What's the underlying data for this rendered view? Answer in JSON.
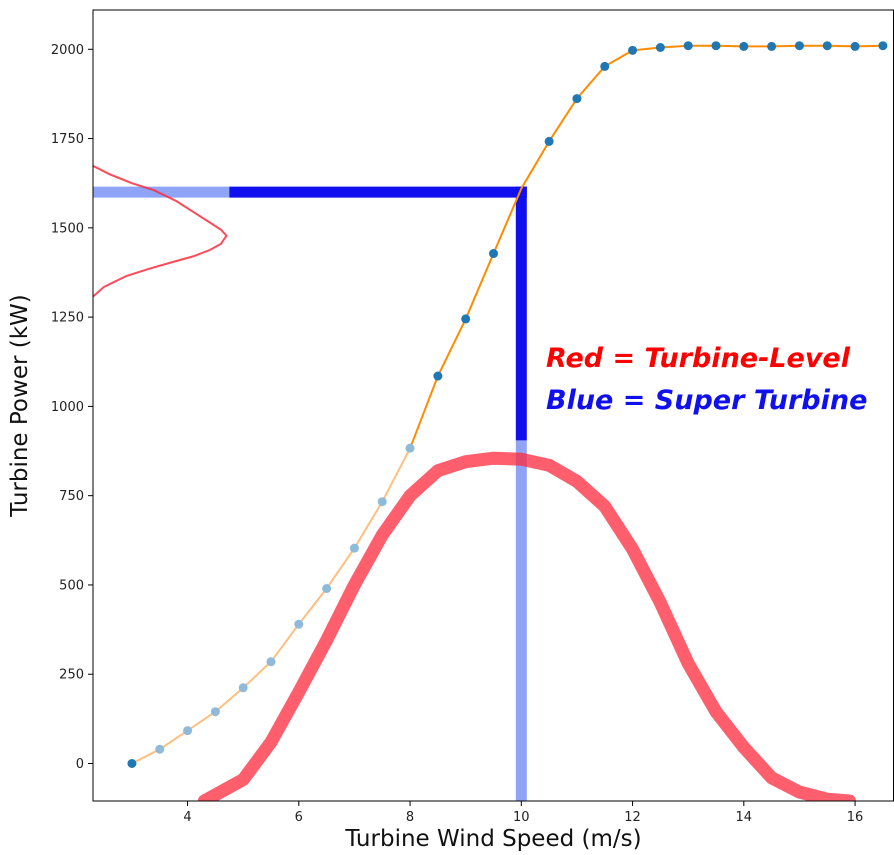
{
  "chart_data": {
    "type": "line",
    "xlabel": "Turbine Wind Speed (m/s)",
    "ylabel": "Turbine Power (kW)",
    "xlim": [
      2.3,
      16.7
    ],
    "ylim": [
      -105,
      2110
    ],
    "xticks": [
      4,
      6,
      8,
      10,
      12,
      14,
      16
    ],
    "yticks": [
      0,
      250,
      500,
      750,
      1000,
      1250,
      1500,
      1750,
      2000
    ],
    "grid": false,
    "power_curve": {
      "x": [
        3.0,
        3.5,
        4.0,
        4.5,
        5.0,
        5.5,
        6.0,
        6.5,
        7.0,
        7.5,
        8.0,
        8.5,
        9.0,
        9.5,
        10.0,
        10.5,
        11.0,
        11.5,
        12.0,
        12.5,
        13.0,
        13.5,
        14.0,
        14.5,
        15.0,
        15.5,
        16.0,
        16.5
      ],
      "y": [
        0,
        40,
        92,
        145,
        212,
        285,
        390,
        490,
        603,
        733,
        883,
        1085,
        1245,
        1428,
        1610,
        1742,
        1862,
        1952,
        1997,
        2005,
        2010,
        2010,
        2008,
        2008,
        2010,
        2010,
        2008,
        2010
      ]
    },
    "power_points_light": {
      "x": [
        3.5,
        4.0,
        4.5,
        5.0,
        5.5,
        6.0,
        6.5,
        7.0,
        7.5,
        8.0
      ],
      "y": [
        40,
        92,
        145,
        212,
        285,
        390,
        490,
        603,
        733,
        883
      ]
    },
    "power_points_dark": {
      "x": [
        3.0,
        8.5,
        9.0,
        9.5,
        10.5,
        11.0,
        11.5,
        12.0,
        12.5,
        13.0,
        13.5,
        14.0,
        14.5,
        15.0,
        15.5,
        16.0,
        16.5
      ],
      "y": [
        0,
        1085,
        1245,
        1428,
        1742,
        1862,
        1952,
        1997,
        2005,
        2010,
        2010,
        2008,
        2008,
        2010,
        2010,
        2008,
        2010
      ]
    },
    "wind_speed_distribution": {
      "x": [
        4.3,
        5.0,
        5.5,
        6.0,
        6.5,
        7.0,
        7.5,
        8.0,
        8.5,
        9.0,
        9.5,
        10.0,
        10.5,
        11.0,
        11.5,
        12.0,
        12.5,
        13.0,
        13.5,
        14.0,
        14.5,
        15.0,
        15.5,
        15.9
      ],
      "y": [
        -105,
        -45,
        60,
        200,
        345,
        500,
        640,
        750,
        820,
        845,
        855,
        852,
        835,
        790,
        720,
        600,
        450,
        280,
        145,
        45,
        -40,
        -80,
        -100,
        -105
      ]
    },
    "power_distribution": {
      "x": [
        2.28,
        2.6,
        3.0,
        3.4,
        3.8,
        4.1,
        4.4,
        4.6,
        4.7,
        4.6,
        4.4,
        4.1,
        3.7,
        3.3,
        2.9,
        2.5,
        2.28
      ],
      "y": [
        1675,
        1650,
        1625,
        1605,
        1575,
        1545,
        1515,
        1495,
        1478,
        1455,
        1438,
        1420,
        1403,
        1385,
        1365,
        1335,
        1305
      ]
    },
    "blue_markers": {
      "horizontal_y": 1600,
      "horizontal_x_start": 2.3,
      "horizontal_x_light_end": 4.75,
      "horizontal_x_end": 10.0,
      "vertical_x": 10.0,
      "vertical_y_top": 1600,
      "vertical_y_dark_end": 905,
      "vertical_y_bottom": -105
    },
    "annotations": [
      {
        "text": "Red = Turbine-Level",
        "color": "#ff0000"
      },
      {
        "text": "Blue = Super Turbine",
        "color": "#1010ee"
      }
    ],
    "colors": {
      "curve": "#ff8c00",
      "curve_light": "#ffbf80",
      "point_dark": "#1f77b4",
      "point_light": "#8fbbd9",
      "distribution": "#ff2a3c",
      "blue": "#1010ee",
      "blue_light": "#8fa3f7"
    }
  }
}
